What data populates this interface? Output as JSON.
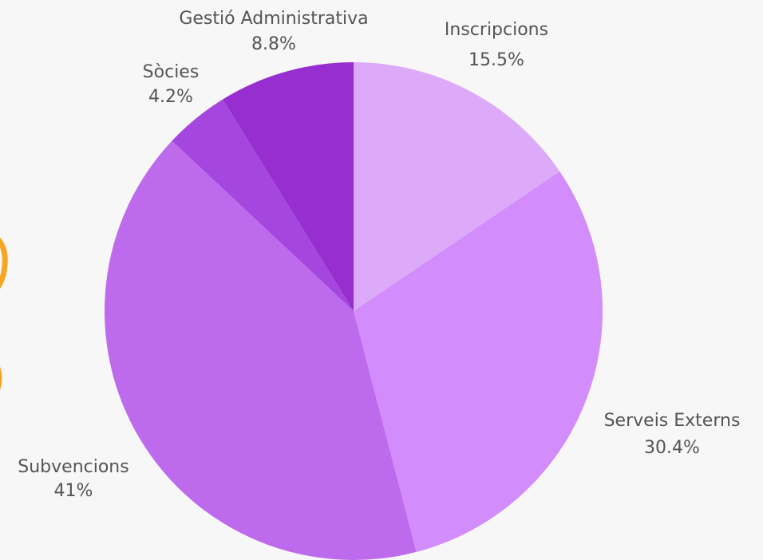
{
  "chart_data": {
    "type": "pie",
    "title": "",
    "slices": [
      {
        "label": "Inscripcions",
        "value": 15.5,
        "value_label": "15.5%",
        "color": "#dcaaf8"
      },
      {
        "label": "Serveis Externs",
        "value": 30.4,
        "value_label": "30.4%",
        "color": "#d38cfc"
      },
      {
        "label": "Subvencions",
        "value": 41,
        "value_label": "41%",
        "color": "#bd6aed"
      },
      {
        "label": "Sòcies",
        "value": 4.2,
        "value_label": "4.2%",
        "color": "#a547df"
      },
      {
        "label": "Gestió Administrativa",
        "value": 8.8,
        "value_label": "8.8%",
        "color": "#962ed0"
      }
    ],
    "start_angle_deg": 0,
    "direction": "clockwise",
    "labels": "outside",
    "legend": "none"
  }
}
